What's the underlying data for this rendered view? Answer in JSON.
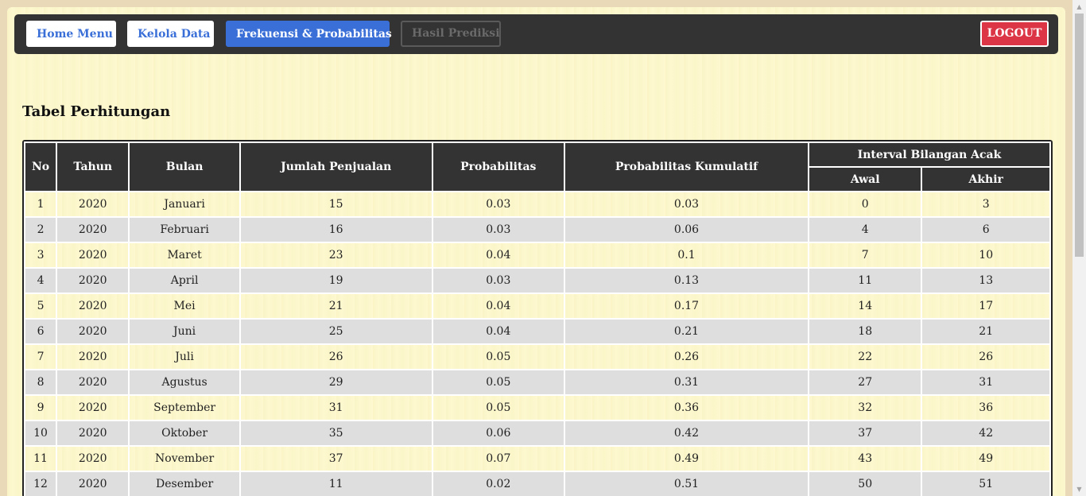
{
  "nav": {
    "home_label": "Home Menu",
    "kelola_label": "Kelola Data",
    "frekuensi_label": "Frekuensi & Probabilitas",
    "hasil_label": "Hasil Prediksi",
    "logout_label": "LOGOUT"
  },
  "section": {
    "title": "Tabel Perhitungan"
  },
  "table": {
    "headers": {
      "no": "No",
      "tahun": "Tahun",
      "bulan": "Bulan",
      "jumlah": "Jumlah Penjualan",
      "probabilitas": "Probabilitas",
      "kumulatif": "Probabilitas Kumulatif",
      "interval": "Interval Bilangan Acak",
      "awal": "Awal",
      "akhir": "Akhir"
    },
    "rows": [
      [
        "1",
        "2020",
        "Januari",
        "15",
        "0.03",
        "0.03",
        "0",
        "3"
      ],
      [
        "2",
        "2020",
        "Februari",
        "16",
        "0.03",
        "0.06",
        "4",
        "6"
      ],
      [
        "3",
        "2020",
        "Maret",
        "23",
        "0.04",
        "0.1",
        "7",
        "10"
      ],
      [
        "4",
        "2020",
        "April",
        "19",
        "0.03",
        "0.13",
        "11",
        "13"
      ],
      [
        "5",
        "2020",
        "Mei",
        "21",
        "0.04",
        "0.17",
        "14",
        "17"
      ],
      [
        "6",
        "2020",
        "Juni",
        "25",
        "0.04",
        "0.21",
        "18",
        "21"
      ],
      [
        "7",
        "2020",
        "Juli",
        "26",
        "0.05",
        "0.26",
        "22",
        "26"
      ],
      [
        "8",
        "2020",
        "Agustus",
        "29",
        "0.05",
        "0.31",
        "27",
        "31"
      ],
      [
        "9",
        "2020",
        "September",
        "31",
        "0.05",
        "0.36",
        "32",
        "36"
      ],
      [
        "10",
        "2020",
        "Oktober",
        "35",
        "0.06",
        "0.42",
        "37",
        "42"
      ],
      [
        "11",
        "2020",
        "November",
        "37",
        "0.07",
        "0.49",
        "43",
        "49"
      ],
      [
        "12",
        "2020",
        "Desember",
        "11",
        "0.02",
        "0.51",
        "50",
        "51"
      ]
    ]
  },
  "colors": {
    "nav_bg": "#333333",
    "primary": "#3a6fd8",
    "danger": "#dc3545",
    "page_bg": "#fdf8cf"
  },
  "icons": {
    "scroll_up": "▲",
    "scroll_down": "▼"
  }
}
